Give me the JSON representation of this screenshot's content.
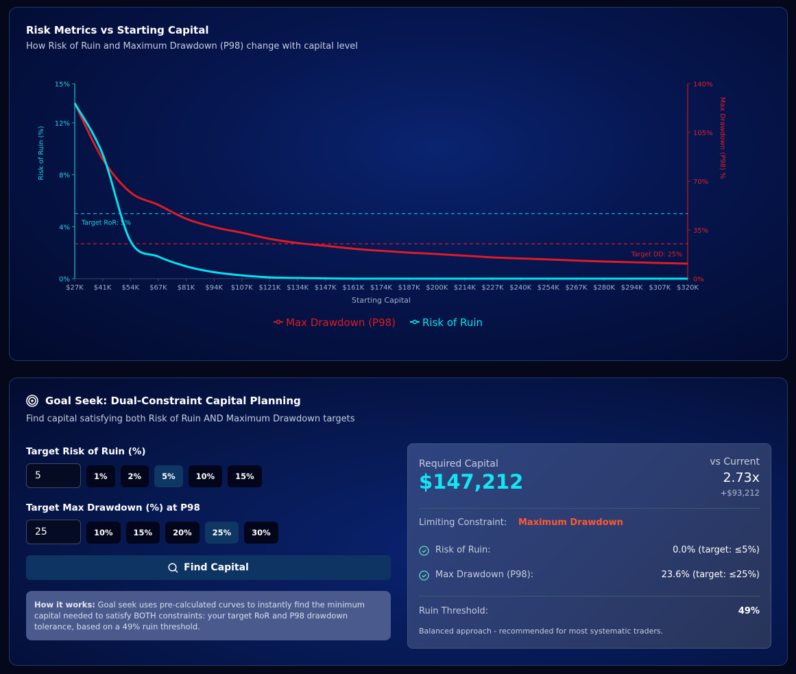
{
  "chart_card": {
    "title": "Risk Metrics vs Starting Capital",
    "subtitle": "How Risk of Ruin and Maximum Drawdown (P98) change with capital level"
  },
  "chart_data": {
    "type": "line",
    "xlabel": "Starting Capital",
    "ylabel_left": "Risk of Ruin (%)",
    "ylabel_right": "Max Drawdown (P98) %",
    "categories": [
      "$27K",
      "$41K",
      "$54K",
      "$67K",
      "$81K",
      "$94K",
      "$107K",
      "$121K",
      "$134K",
      "$147K",
      "$161K",
      "$174K",
      "$187K",
      "$200K",
      "$214K",
      "$227K",
      "$240K",
      "$254K",
      "$267K",
      "$280K",
      "$294K",
      "$307K",
      "$320K"
    ],
    "y_left": {
      "range": [
        0,
        15
      ],
      "ticks": [
        "0%",
        "4%",
        "8%",
        "12%",
        "15%"
      ],
      "tick_values": [
        0,
        4,
        8,
        12,
        15
      ]
    },
    "y_right": {
      "range": [
        0,
        140
      ],
      "ticks": [
        "0%",
        "35%",
        "70%",
        "105%",
        "140%"
      ],
      "tick_values": [
        0,
        35,
        70,
        105,
        140
      ]
    },
    "series": [
      {
        "name": "Max Drawdown (P98)",
        "axis": "right",
        "color": "#e01b24",
        "values": [
          126,
          86,
          62,
          53,
          43,
          37,
          33,
          28.6,
          25.6,
          23.6,
          21.5,
          20,
          18.7,
          17.7,
          16.5,
          15.3,
          14.5,
          13.8,
          13,
          12.3,
          11.8,
          11.3,
          10.8
        ]
      },
      {
        "name": "Risk of Ruin",
        "axis": "left",
        "color": "#00e5f0",
        "values": [
          13.5,
          9.6,
          2.9,
          1.7,
          0.95,
          0.5,
          0.25,
          0.1,
          0.05,
          0.02,
          0,
          0,
          0,
          0,
          0,
          0,
          0,
          0,
          0,
          0,
          0,
          0,
          0
        ]
      }
    ],
    "reference_lines": [
      {
        "label": "Target RoR: 5%",
        "axis": "left",
        "value": 5,
        "color": "#22b8e0"
      },
      {
        "label": "Target DD: 25%",
        "axis": "right",
        "value": 25,
        "color": "#e01b24"
      }
    ],
    "legend": "bottom-center",
    "grid": false
  },
  "goal": {
    "title": "Goal Seek: Dual-Constraint Capital Planning",
    "subtitle": "Find capital satisfying both Risk of Ruin AND Maximum Drawdown targets",
    "ror_label": "Target Risk of Ruin (%)",
    "ror_value": "5",
    "ror_presets": [
      "1%",
      "2%",
      "5%",
      "10%",
      "15%"
    ],
    "ror_selected": "5%",
    "dd_label": "Target Max Drawdown (%) at P98",
    "dd_value": "25",
    "dd_presets": [
      "10%",
      "15%",
      "20%",
      "25%",
      "30%"
    ],
    "dd_selected": "25%",
    "find_label": "Find Capital",
    "how_bold": "How it works:",
    "how_text": " Goal seek uses pre-calculated curves to instantly find the minimum capital needed to satisfy BOTH constraints: your target RoR and P98 drawdown tolerance, based on a 49% ruin threshold."
  },
  "result": {
    "required_label": "Required Capital",
    "required_value": "$147,212",
    "vs_label": "vs Current",
    "multiple": "2.73x",
    "diff": "+$93,212",
    "limiting_label": "Limiting Constraint:",
    "limiting_value": "Maximum Drawdown",
    "ror_label": "Risk of Ruin:",
    "ror_value": "0.0% (target: ≤5%)",
    "dd_label": "Max Drawdown (P98):",
    "dd_value": "23.6% (target: ≤25%)",
    "threshold_label": "Ruin Threshold:",
    "threshold_value": "49%",
    "note": "Balanced approach - recommended for most systematic traders."
  }
}
